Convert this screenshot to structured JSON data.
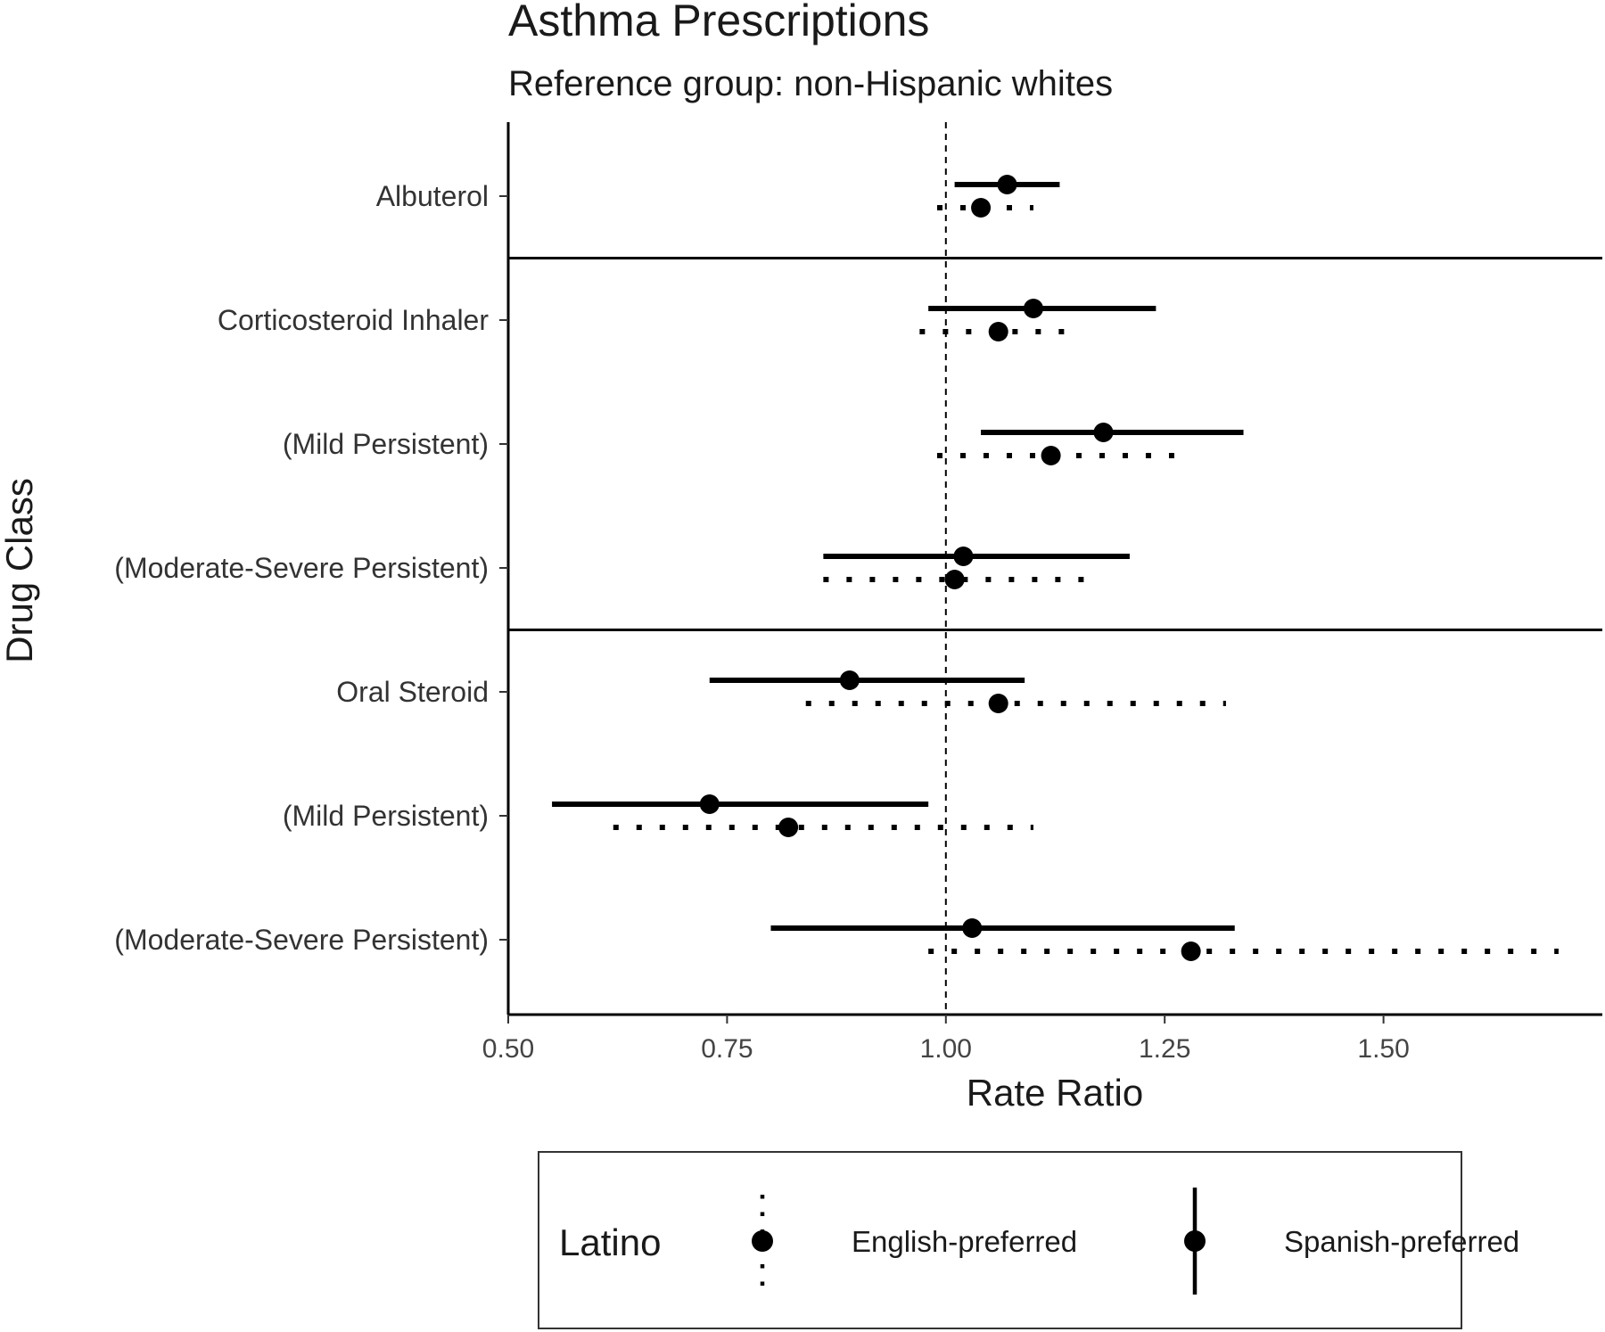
{
  "chart_data": {
    "type": "forest",
    "title": "Asthma Prescriptions",
    "subtitle": "Reference group: non-Hispanic whites",
    "xlabel": "Rate Ratio",
    "ylabel": "Drug Class",
    "xlim": [
      0.5,
      1.75
    ],
    "xticks": [
      0.5,
      0.75,
      1.0,
      1.25,
      1.5
    ],
    "xtick_labels": [
      "0.50",
      "0.75",
      "1.00",
      "1.25",
      "1.50"
    ],
    "reference_line": 1.0,
    "categories": [
      "Albuterol",
      "Corticosteroid Inhaler",
      "(Mild Persistent)",
      "(Moderate-Severe Persistent)",
      "Oral Steroid",
      "(Mild Persistent)",
      "(Moderate-Severe Persistent)"
    ],
    "group_separators_after": [
      0,
      3
    ],
    "series": [
      {
        "name": "Spanish-preferred",
        "line_style": "solid",
        "estimates": [
          1.07,
          1.1,
          1.18,
          1.02,
          0.89,
          0.73,
          1.03
        ],
        "lower": [
          1.01,
          0.98,
          1.04,
          0.86,
          0.73,
          0.55,
          0.8
        ],
        "upper": [
          1.13,
          1.24,
          1.34,
          1.21,
          1.09,
          0.98,
          1.33
        ]
      },
      {
        "name": "English-preferred",
        "line_style": "dotted",
        "estimates": [
          1.04,
          1.06,
          1.12,
          1.01,
          1.06,
          0.82,
          1.28
        ],
        "lower": [
          0.99,
          0.97,
          0.99,
          0.86,
          0.84,
          0.62,
          0.98
        ],
        "upper": [
          1.1,
          1.15,
          1.27,
          1.17,
          1.32,
          1.1,
          1.7
        ]
      }
    ],
    "legend": {
      "title": "Latino",
      "position": "bottom",
      "items": [
        "English-preferred",
        "Spanish-preferred"
      ]
    },
    "grid": false,
    "colors": {
      "ink": "#000000"
    }
  }
}
